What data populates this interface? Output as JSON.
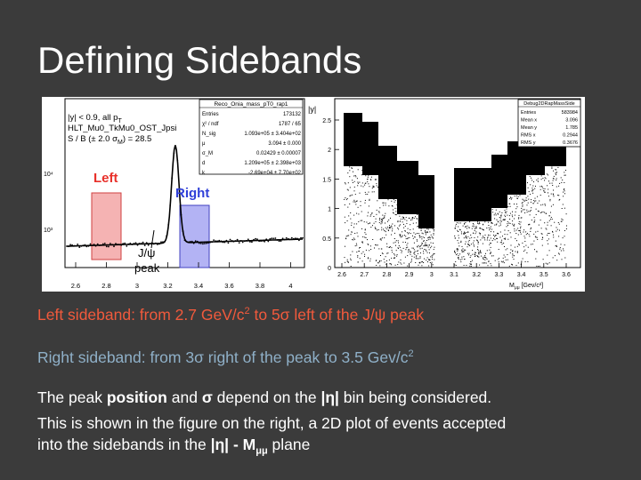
{
  "slide": {
    "title": "Defining Sidebands"
  },
  "left_plot": {
    "stats_box": {
      "name": "Reco_Onia_mass_pT0_rap1",
      "rows": [
        {
          "label": "Entries",
          "value": "173132"
        },
        {
          "label": "χ² / ndf",
          "value": "1787 / 65"
        },
        {
          "label": "N_sig",
          "value": "1.093e+05 ± 3.404e+02"
        },
        {
          "label": "μ",
          "value": "3.094 ± 0.000"
        },
        {
          "label": "σ_M",
          "value": "0.02429 ± 0.00007"
        },
        {
          "label": "d",
          "value": "1.209e+05 ± 2.398e+03"
        },
        {
          "label": "k",
          "value": "-2.69e+04 ± 7.70e+02"
        }
      ]
    },
    "cuts": {
      "line1": "|y| < 0.9, all p",
      "line1_sub": "T",
      "line2": "HLT_Mu0_TkMu0_OST_Jpsi",
      "line3": "S / B (± 2.0 σ",
      "line3_sub": "M",
      "line3_end": ") = 28.5"
    },
    "left_label": "Left",
    "right_label": "Right",
    "peak_label_1": "J/ψ",
    "peak_label_2": "peak",
    "y_ticks": [
      "10⁴",
      "10³"
    ],
    "x_ticks": [
      "2.6",
      "2.8",
      "3",
      "3.2",
      "3.4",
      "3.6",
      "3.8",
      "4"
    ]
  },
  "right_plot": {
    "stats_box": {
      "name": "Debug2DRapMassSide",
      "rows": [
        {
          "label": "Entries",
          "value": "583984"
        },
        {
          "label": "Mean x",
          "value": "3.096"
        },
        {
          "label": "Mean y",
          "value": "1.785"
        },
        {
          "label": "RMS x",
          "value": "0.2944"
        },
        {
          "label": "RMS y",
          "value": "0.3676"
        }
      ]
    },
    "y_label": "|y|",
    "y_ticks": [
      "2.5",
      "2",
      "1.5",
      "1",
      "0.5",
      "0"
    ],
    "x_ticks": [
      "2.6",
      "2.7",
      "2.8",
      "2.9",
      "3",
      "3.1",
      "3.2",
      "3.3",
      "3.4",
      "3.5",
      "3.6"
    ],
    "x_label": "M",
    "x_label_sub": "μμ",
    "x_label_unit": "[Gev/c²]"
  },
  "text": {
    "line1_a": "Left sideband: from  2.7 GeV/c",
    "line1_sup": "2",
    "line1_b": "  to  5σ left of the J/ψ peak",
    "line2_a": "Right sideband: from  3σ right of the peak  to  3.5 Gev/c",
    "line2_sup": "2",
    "line3_a": "The peak ",
    "line3_bold1": "position",
    "line3_b": " and ",
    "line3_bold2": "σ",
    "line3_c": "  depend on the ",
    "line3_bold3": "|η|",
    "line3_d": " bin being considered.",
    "line4": "This is shown in the figure on the right, a 2D plot of events accepted",
    "line5_a": "into the sidebands in the ",
    "line5_bold": "|η| - M",
    "line5_sub": "μμ",
    "line5_b": " plane"
  },
  "colors": {
    "background": "#3b3b3b",
    "left_band": "#f08080",
    "right_band": "#8080e0",
    "left_text": "#f15a3c",
    "right_text": "#8fb0c8"
  }
}
